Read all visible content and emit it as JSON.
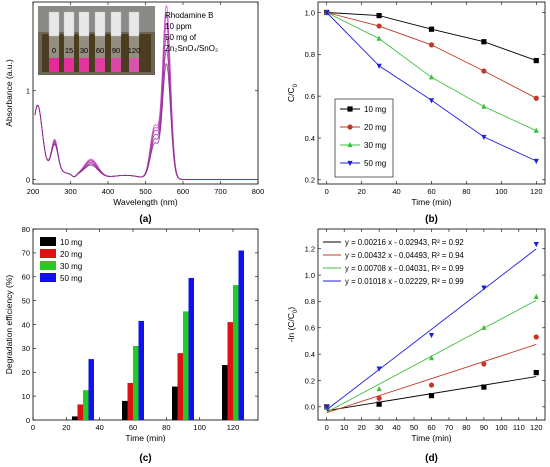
{
  "chart_data": [
    {
      "panel": "(a)",
      "type": "line",
      "xlabel": "Wavelength (nm)",
      "ylabel": "Absorbance (a.u.)",
      "xlim": [
        200,
        800
      ],
      "ylim": [
        -0.05,
        2.0
      ],
      "xticks": [
        200,
        300,
        400,
        500,
        600,
        700,
        800
      ],
      "yticks": [
        0,
        1
      ],
      "annotation": [
        "Rhodamine B",
        "10 ppm",
        "50 mg of",
        "Zn₂SnO₄/SnO₂"
      ],
      "inset_labels": [
        "0",
        "15",
        "30",
        "60",
        "90",
        "120"
      ],
      "series": [
        {
          "peak": 1.95,
          "color": "#d060d0"
        },
        {
          "peak": 1.85,
          "color": "#c84fc8"
        },
        {
          "peak": 1.75,
          "color": "#b545b5"
        },
        {
          "peak": 1.6,
          "color": "#a83aa8"
        },
        {
          "peak": 1.45,
          "color": "#9a3399"
        },
        {
          "peak": 1.3,
          "color": "#8a2e8a"
        }
      ],
      "grid": false
    },
    {
      "panel": "(b)",
      "type": "line",
      "xlabel": "Time (min)",
      "ylabel": "C/C₀",
      "xlim": [
        -5,
        125
      ],
      "ylim": [
        0.18,
        1.05
      ],
      "xticks": [
        0,
        20,
        40,
        60,
        80,
        100,
        120
      ],
      "yticks": [
        0.2,
        0.4,
        0.6,
        0.8,
        1.0
      ],
      "ytick_labels": [
        "0.2",
        "0.4",
        "0.6",
        "0.8",
        "1.0"
      ],
      "x": [
        0,
        30,
        60,
        90,
        120
      ],
      "series": [
        {
          "name": "10 mg",
          "values": [
            1.0,
            0.985,
            0.92,
            0.86,
            0.77
          ],
          "color": "#000000",
          "marker": "square"
        },
        {
          "name": "20 mg",
          "values": [
            1.0,
            0.935,
            0.845,
            0.72,
            0.59
          ],
          "color": "#c0392b",
          "marker": "circle"
        },
        {
          "name": "30 mg",
          "values": [
            1.0,
            0.875,
            0.69,
            0.55,
            0.435
          ],
          "color": "#3cc03c",
          "marker": "triangle-up"
        },
        {
          "name": "50 mg",
          "values": [
            1.0,
            0.745,
            0.58,
            0.405,
            0.29
          ],
          "color": "#1f1fe0",
          "marker": "triangle-down"
        }
      ],
      "legend_position": "top-left",
      "grid": false
    },
    {
      "panel": "(c)",
      "type": "bar",
      "xlabel": "Time (min)",
      "ylabel": "Degradation efficiency (%)",
      "xlim": [
        0,
        135
      ],
      "ylim": [
        0,
        80
      ],
      "xticks": [
        0,
        20,
        40,
        60,
        80,
        100,
        120
      ],
      "yticks": [
        0,
        10,
        20,
        30,
        40,
        50,
        60,
        70,
        80
      ],
      "categories": [
        30,
        60,
        90,
        120
      ],
      "series": [
        {
          "name": "10 mg",
          "values": [
            1.5,
            8,
            14,
            23
          ],
          "color": "#000000"
        },
        {
          "name": "20 mg",
          "values": [
            6.5,
            15.5,
            28,
            41
          ],
          "color": "#dd1111"
        },
        {
          "name": "30 mg",
          "values": [
            12.5,
            31,
            45.5,
            56.5
          ],
          "color": "#22cc22"
        },
        {
          "name": "50 mg",
          "values": [
            25.5,
            41.5,
            59.5,
            71
          ],
          "color": "#1111ee"
        }
      ],
      "legend_position": "top-left",
      "grid": false
    },
    {
      "panel": "(d)",
      "type": "scatter",
      "xlabel": "Time (min)",
      "ylabel": "-ln (C/C₀)",
      "xlim": [
        -5,
        125
      ],
      "ylim": [
        -0.1,
        1.35
      ],
      "xticks": [
        0,
        10,
        20,
        30,
        40,
        50,
        60,
        70,
        80,
        90,
        100,
        110,
        120
      ],
      "yticks": [
        0.0,
        0.2,
        0.4,
        0.6,
        0.8,
        1.0,
        1.2
      ],
      "ytick_labels": [
        "0.0",
        "0.2",
        "0.4",
        "0.6",
        "0.8",
        "1.0",
        "1.2"
      ],
      "x": [
        0,
        30,
        60,
        90,
        120
      ],
      "series": [
        {
          "fit": "y = 0.00216 x - 0.02943, R² = 0.92",
          "values": [
            0.0,
            0.02,
            0.085,
            0.15,
            0.26
          ],
          "slope": 0.00216,
          "intercept": -0.02943,
          "color": "#000000",
          "marker": "square"
        },
        {
          "fit": "y = 0.00432 x - 0.04493, R² = 0.94",
          "values": [
            0.0,
            0.065,
            0.165,
            0.325,
            0.53
          ],
          "slope": 0.00432,
          "intercept": -0.04493,
          "color": "#c0392b",
          "marker": "circle"
        },
        {
          "fit": "y = 0.00708 x - 0.04031, R² = 0.99",
          "values": [
            0.0,
            0.135,
            0.37,
            0.6,
            0.835
          ],
          "slope": 0.00708,
          "intercept": -0.04031,
          "color": "#3cc03c",
          "marker": "triangle-up"
        },
        {
          "fit": "y = 0.01018 x - 0.02229, R² = 0.99",
          "values": [
            0.0,
            0.29,
            0.545,
            0.905,
            1.235
          ],
          "slope": 0.01018,
          "intercept": -0.02229,
          "color": "#1f1fe0",
          "marker": "triangle-down"
        }
      ],
      "legend_position": "top-left",
      "grid": false
    }
  ]
}
